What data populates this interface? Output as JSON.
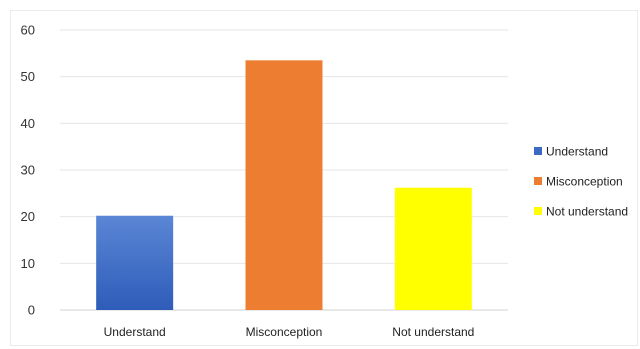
{
  "chart_data": {
    "type": "bar",
    "title": "",
    "xlabel": "",
    "ylabel": "",
    "categories": [
      "Understand",
      "Misconception",
      "Not understand"
    ],
    "values": [
      20.2,
      53.5,
      26.2
    ],
    "ylim": [
      0,
      60
    ],
    "yticks": [
      0,
      10,
      20,
      30,
      40,
      50,
      60
    ],
    "grid": true,
    "legend_position": "right",
    "legend": [
      "Understand",
      "Misconception",
      "Not understand"
    ],
    "colors": [
      "#3a6ac4",
      "#ed7d31",
      "#ffff00"
    ]
  }
}
